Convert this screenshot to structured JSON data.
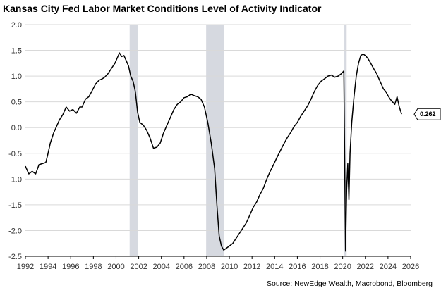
{
  "chart_data": {
    "type": "line",
    "title": "Kansas City Fed Labor Market Conditions Level of Activity Indicator",
    "source": "Source: NewEdge Wealth, Macrobond, Bloomberg",
    "xlabel": "",
    "ylabel": "",
    "xlim": [
      1992,
      2026
    ],
    "ylim": [
      -2.5,
      2.0
    ],
    "xticks": [
      1992,
      1994,
      1996,
      1998,
      2000,
      2002,
      2004,
      2006,
      2008,
      2010,
      2012,
      2014,
      2016,
      2018,
      2020,
      2022,
      2024,
      2026
    ],
    "yticks": [
      2.0,
      1.5,
      1.0,
      0.5,
      0.0,
      -0.5,
      -1.0,
      -1.5,
      -2.0,
      -2.5
    ],
    "ytick_labels": [
      "2.0",
      "1.5",
      "1.0",
      "0.5",
      "0.0",
      "-0.5",
      "-1.0",
      "-1.5",
      "-2.0",
      "-2.5"
    ],
    "recessions": [
      [
        2001.2,
        2001.9
      ],
      [
        2007.95,
        2009.5
      ],
      [
        2020.15,
        2020.35
      ]
    ],
    "last_value_label": "0.262",
    "series": [
      {
        "name": "Level of Activity Indicator",
        "color": "#000000",
        "x": [
          1992.0,
          1992.3,
          1992.6,
          1992.9,
          1993.2,
          1993.5,
          1993.8,
          1994.0,
          1994.2,
          1994.5,
          1994.8,
          1995.0,
          1995.3,
          1995.6,
          1995.9,
          1996.2,
          1996.5,
          1996.8,
          1997.0,
          1997.3,
          1997.6,
          1997.9,
          1998.2,
          1998.5,
          1998.8,
          1999.0,
          1999.3,
          1999.6,
          1999.9,
          2000.1,
          2000.3,
          2000.5,
          2000.7,
          2000.9,
          2001.1,
          2001.3,
          2001.5,
          2001.7,
          2001.9,
          2002.1,
          2002.4,
          2002.7,
          2003.0,
          2003.3,
          2003.6,
          2003.9,
          2004.2,
          2004.5,
          2004.8,
          2005.1,
          2005.4,
          2005.7,
          2006.0,
          2006.3,
          2006.6,
          2006.9,
          2007.2,
          2007.5,
          2007.8,
          2008.1,
          2008.4,
          2008.7,
          2008.9,
          2009.1,
          2009.3,
          2009.5,
          2009.7,
          2010.0,
          2010.3,
          2010.6,
          2010.9,
          2011.2,
          2011.5,
          2011.8,
          2012.1,
          2012.4,
          2012.7,
          2013.0,
          2013.3,
          2013.6,
          2013.9,
          2014.2,
          2014.5,
          2014.8,
          2015.1,
          2015.4,
          2015.7,
          2016.0,
          2016.3,
          2016.6,
          2016.9,
          2017.2,
          2017.5,
          2017.8,
          2018.1,
          2018.4,
          2018.7,
          2019.0,
          2019.3,
          2019.6,
          2019.9,
          2020.1,
          2020.25,
          2020.35,
          2020.45,
          2020.55,
          2020.65,
          2020.8,
          2021.0,
          2021.2,
          2021.4,
          2021.6,
          2021.8,
          2022.0,
          2022.2,
          2022.4,
          2022.6,
          2022.8,
          2023.0,
          2023.2,
          2023.4,
          2023.6,
          2023.8,
          2024.0,
          2024.2,
          2024.4,
          2024.6,
          2024.8,
          2025.0,
          2025.2
        ],
        "values": [
          -0.75,
          -0.9,
          -0.85,
          -0.9,
          -0.72,
          -0.7,
          -0.68,
          -0.5,
          -0.3,
          -0.1,
          0.05,
          0.15,
          0.25,
          0.4,
          0.32,
          0.35,
          0.28,
          0.4,
          0.4,
          0.55,
          0.6,
          0.72,
          0.85,
          0.92,
          0.95,
          0.98,
          1.05,
          1.15,
          1.25,
          1.35,
          1.45,
          1.38,
          1.4,
          1.3,
          1.2,
          1.0,
          0.9,
          0.7,
          0.3,
          0.1,
          0.05,
          -0.05,
          -0.2,
          -0.4,
          -0.38,
          -0.3,
          -0.1,
          0.05,
          0.2,
          0.35,
          0.45,
          0.5,
          0.58,
          0.6,
          0.65,
          0.62,
          0.6,
          0.55,
          0.4,
          0.1,
          -0.3,
          -0.8,
          -1.5,
          -2.1,
          -2.3,
          -2.38,
          -2.35,
          -2.3,
          -2.25,
          -2.15,
          -2.05,
          -1.95,
          -1.85,
          -1.7,
          -1.55,
          -1.45,
          -1.3,
          -1.18,
          -1.0,
          -0.85,
          -0.72,
          -0.58,
          -0.45,
          -0.32,
          -0.2,
          -0.1,
          0.02,
          0.1,
          0.22,
          0.32,
          0.42,
          0.55,
          0.7,
          0.82,
          0.9,
          0.95,
          1.0,
          1.02,
          0.98,
          1.0,
          1.05,
          1.1,
          -2.4,
          -1.2,
          -0.7,
          -1.4,
          -0.5,
          0.1,
          0.6,
          1.0,
          1.25,
          1.4,
          1.43,
          1.4,
          1.35,
          1.28,
          1.2,
          1.12,
          1.05,
          0.95,
          0.85,
          0.75,
          0.7,
          0.62,
          0.55,
          0.5,
          0.45,
          0.6,
          0.4,
          0.26
        ]
      }
    ]
  }
}
